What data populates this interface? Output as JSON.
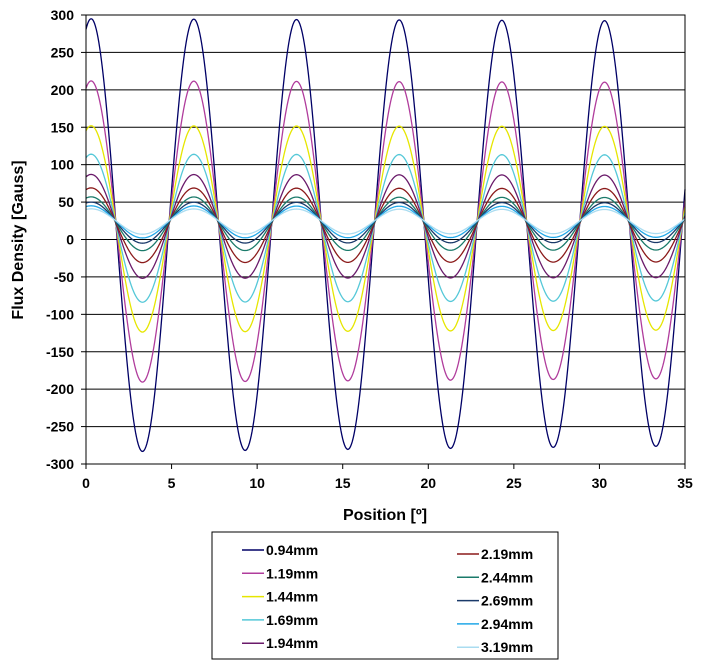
{
  "chart_data": {
    "type": "line",
    "title": "",
    "xlabel": "Position [º]",
    "ylabel": "Flux Density [Gauss]",
    "xlim": [
      0,
      35
    ],
    "ylim": [
      -300,
      300
    ],
    "x_ticks": [
      0,
      5,
      10,
      15,
      20,
      25,
      30,
      35
    ],
    "y_ticks": [
      -300,
      -250,
      -200,
      -150,
      -100,
      -50,
      0,
      50,
      100,
      150,
      200,
      250,
      300
    ],
    "grid": "horizontal",
    "legend_position": "bottom",
    "period_deg": 6,
    "first_peak_deg": 0.3,
    "series": [
      {
        "name": "0.94mm",
        "color": "#000066",
        "peak": 295,
        "trough": -284,
        "end_peak": 292,
        "end_trough": -276
      },
      {
        "name": "1.19mm",
        "color": "#b03c9c",
        "peak": 212,
        "trough": -191,
        "end_peak": 210,
        "end_trough": -186
      },
      {
        "name": "1.44mm",
        "color": "#e6e600",
        "peak": 152,
        "trough": -124,
        "end_peak": 151,
        "end_trough": -121
      },
      {
        "name": "1.69mm",
        "color": "#55c8d8",
        "peak": 114,
        "trough": -84,
        "end_peak": 113,
        "end_trough": -82
      },
      {
        "name": "1.94mm",
        "color": "#6a1a6a",
        "peak": 87,
        "trough": -52,
        "end_peak": 86,
        "end_trough": -51
      },
      {
        "name": "2.19mm",
        "color": "#8b1a1a",
        "peak": 69,
        "trough": -31,
        "end_peak": 68,
        "end_trough": -30
      },
      {
        "name": "2.44mm",
        "color": "#1a7a6a",
        "peak": 57,
        "trough": -15,
        "end_peak": 56,
        "end_trough": -14
      },
      {
        "name": "2.69mm",
        "color": "#1a3a6a",
        "peak": 50,
        "trough": -5,
        "end_peak": 49,
        "end_trough": -4
      },
      {
        "name": "2.94mm",
        "color": "#22a8e8",
        "peak": 45,
        "trough": 2,
        "end_peak": 44,
        "end_trough": 3
      },
      {
        "name": "3.19mm",
        "color": "#aadcf0",
        "peak": 41,
        "trough": 7,
        "end_peak": 40,
        "end_trough": 8
      }
    ]
  }
}
